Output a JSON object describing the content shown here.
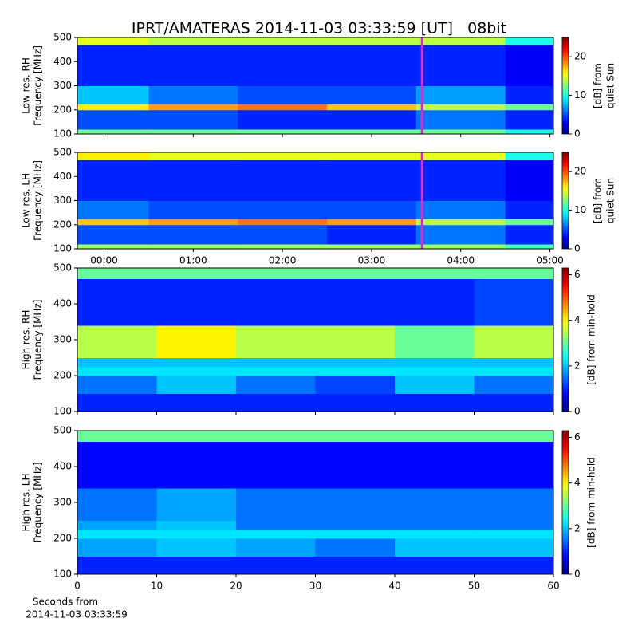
{
  "chart_data": [
    {
      "type": "heatmap",
      "title": "IPRT/AMATERAS 2014-11-03 03:33:59 [UT]   08bit",
      "ylabel": [
        "Low res. RH",
        "Frequency [MHz]"
      ],
      "clabel": [
        "[dB] from",
        "quiet Sun"
      ],
      "xlim": [
        -0.3,
        5.04
      ],
      "xticks": [
        0,
        1,
        2,
        3,
        4,
        5
      ],
      "ylim": [
        100,
        500
      ],
      "yticks": [
        100,
        200,
        300,
        400,
        500
      ],
      "clim": [
        0,
        25
      ],
      "cticks": [
        0,
        10,
        20
      ],
      "colormap": "jet",
      "marker": {
        "x": 3.566,
        "color": "#cc33cc"
      },
      "heatmap": {
        "xbins": [
          -0.3,
          0.5,
          1.5,
          2.5,
          3.5,
          4.5,
          5.04
        ],
        "ybins": [
          100,
          120,
          200,
          225,
          300,
          470,
          500
        ],
        "z": [
          [
            12,
            12,
            12,
            12,
            12,
            10
          ],
          [
            5,
            5,
            4,
            4,
            6,
            4
          ],
          [
            16,
            18,
            19,
            17,
            14,
            12
          ],
          [
            8,
            6,
            5,
            5,
            7,
            4
          ],
          [
            4,
            4,
            4,
            4,
            4,
            3
          ],
          [
            15,
            14,
            14,
            14,
            14,
            10
          ]
        ]
      }
    },
    {
      "type": "heatmap",
      "ylabel": [
        "Low res. LH",
        "Frequency [MHz]"
      ],
      "clabel": [
        "[dB] from",
        "quiet Sun"
      ],
      "xlim": [
        -0.3,
        5.04
      ],
      "xticks": [
        {
          "value": 0,
          "label": "00:00"
        },
        {
          "value": 1,
          "label": "01:00"
        },
        {
          "value": 2,
          "label": "02:00"
        },
        {
          "value": 3,
          "label": "03:00"
        },
        {
          "value": 4,
          "label": "04:00"
        },
        {
          "value": 5,
          "label": "05:00"
        }
      ],
      "ylim": [
        100,
        500
      ],
      "yticks": [
        100,
        200,
        300,
        400,
        500
      ],
      "clim": [
        0,
        25
      ],
      "cticks": [
        0,
        10,
        20
      ],
      "colormap": "jet",
      "marker": {
        "x": 3.566,
        "color": "#cc33cc"
      },
      "heatmap": {
        "xbins": [
          -0.3,
          0.5,
          1.5,
          2.5,
          3.5,
          4.5,
          5.04
        ],
        "ybins": [
          100,
          120,
          200,
          225,
          300,
          470,
          500
        ],
        "z": [
          [
            13,
            13,
            13,
            13,
            13,
            11
          ],
          [
            5,
            5,
            5,
            4,
            6,
            4
          ],
          [
            17,
            18,
            19,
            18,
            14,
            12
          ],
          [
            6,
            5,
            5,
            5,
            6,
            4
          ],
          [
            4,
            4,
            4,
            4,
            4,
            3
          ],
          [
            16,
            15,
            15,
            15,
            15,
            10
          ]
        ]
      }
    },
    {
      "type": "heatmap",
      "ylabel": [
        "High res. RH",
        "Frequency [MHz]"
      ],
      "clabel": [
        "[dB] from min-hold"
      ],
      "xlim": [
        0,
        60
      ],
      "xticks": [
        0,
        10,
        20,
        30,
        40,
        50,
        60
      ],
      "ylim": [
        100,
        500
      ],
      "yticks": [
        100,
        200,
        300,
        400,
        500
      ],
      "clim": [
        0,
        6.3
      ],
      "cticks": [
        0,
        2,
        4,
        6
      ],
      "colormap": "jet",
      "heatmap": {
        "xbins": [
          0,
          10,
          20,
          30,
          40,
          50,
          60
        ],
        "ybins": [
          100,
          150,
          200,
          225,
          250,
          340,
          470,
          500
        ],
        "z": [
          [
            1,
            1,
            1,
            1,
            1,
            1
          ],
          [
            1.5,
            2,
            1.5,
            1.2,
            2,
            1.5
          ],
          [
            2.2,
            2.2,
            2.2,
            2.2,
            2.2,
            2.2
          ],
          [
            2,
            2,
            2,
            2,
            2,
            2
          ],
          [
            3.5,
            4,
            3.5,
            3.5,
            3,
            3.5
          ],
          [
            1,
            1,
            1,
            1,
            1,
            1.2
          ],
          [
            3,
            3,
            3,
            3,
            3,
            3
          ]
        ]
      }
    },
    {
      "type": "heatmap",
      "ylabel": [
        "High res. LH",
        "Frequency [MHz]"
      ],
      "clabel": [
        "[dB] from min-hold"
      ],
      "xlabel": [
        "Seconds from",
        "2014-11-03 03:33:59"
      ],
      "xlim": [
        0,
        60
      ],
      "xticks": [
        0,
        10,
        20,
        30,
        40,
        50,
        60
      ],
      "ylim": [
        100,
        500
      ],
      "yticks": [
        100,
        200,
        300,
        400,
        500
      ],
      "clim": [
        0,
        6.3
      ],
      "cticks": [
        0,
        2,
        4,
        6
      ],
      "colormap": "jet",
      "heatmap": {
        "xbins": [
          0,
          10,
          20,
          30,
          40,
          50,
          60
        ],
        "ybins": [
          100,
          150,
          200,
          225,
          250,
          340,
          470,
          500
        ],
        "z": [
          [
            1,
            1,
            1,
            1,
            1,
            1
          ],
          [
            1.8,
            2,
            1.8,
            1.5,
            2,
            2
          ],
          [
            2.2,
            2.2,
            2.2,
            2.2,
            2.2,
            2.2
          ],
          [
            1.8,
            2,
            1.5,
            1.5,
            1.5,
            1.5
          ],
          [
            1.5,
            1.8,
            1.5,
            1.5,
            1.5,
            1.5
          ],
          [
            0.8,
            0.8,
            0.8,
            0.8,
            0.8,
            0.8
          ],
          [
            3,
            3,
            3,
            3,
            3,
            3
          ]
        ]
      }
    }
  ]
}
